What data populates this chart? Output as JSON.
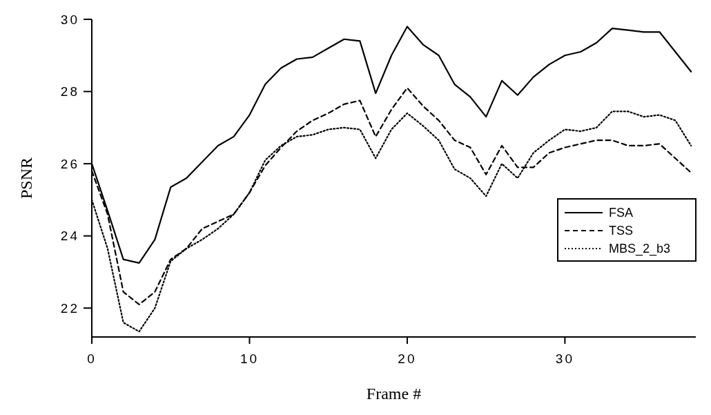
{
  "chart_data": {
    "type": "line",
    "xlabel": "Frame #",
    "ylabel": "PSNR",
    "xlim": [
      0,
      38.3
    ],
    "ylim": [
      21.2,
      30
    ],
    "xticks": [
      0,
      10,
      20,
      30
    ],
    "yticks": [
      22,
      24,
      26,
      28,
      30
    ],
    "grid": false,
    "legend": "right",
    "x": [
      0,
      1,
      2,
      3,
      4,
      5,
      6,
      7,
      8,
      9,
      10,
      11,
      12,
      13,
      14,
      15,
      16,
      17,
      18,
      19,
      20,
      21,
      22,
      23,
      24,
      25,
      26,
      27,
      28,
      29,
      30,
      31,
      32,
      33,
      34,
      35,
      36,
      37,
      38
    ],
    "series": [
      {
        "name": "FSA",
        "color": "#000000",
        "line_style": "solid",
        "values": [
          26.0,
          24.7,
          23.35,
          23.25,
          23.9,
          25.35,
          25.6,
          26.05,
          26.5,
          26.75,
          27.35,
          28.2,
          28.65,
          28.9,
          28.95,
          29.2,
          29.45,
          29.4,
          27.95,
          29.0,
          29.8,
          29.3,
          29.0,
          28.2,
          27.85,
          27.3,
          28.3,
          27.9,
          28.4,
          28.75,
          29.0,
          29.1,
          29.35,
          29.75,
          29.7,
          29.65,
          29.65,
          29.1,
          28.55
        ]
      },
      {
        "name": "TSS",
        "color": "#000000",
        "line_style": "dashed",
        "values": [
          25.8,
          24.6,
          22.45,
          22.1,
          22.45,
          23.35,
          23.65,
          24.2,
          24.4,
          24.6,
          25.2,
          25.95,
          26.45,
          26.9,
          27.2,
          27.4,
          27.65,
          27.75,
          26.75,
          27.5,
          28.1,
          27.6,
          27.2,
          26.65,
          26.45,
          25.7,
          26.5,
          25.9,
          25.9,
          26.3,
          26.45,
          26.55,
          26.65,
          26.65,
          26.5,
          26.5,
          26.55,
          26.15,
          25.75
        ]
      },
      {
        "name": "MBS_2_b3",
        "color": "#000000",
        "line_style": "dotted",
        "values": [
          25.0,
          23.65,
          21.6,
          21.35,
          22.0,
          23.3,
          23.65,
          23.9,
          24.2,
          24.6,
          25.2,
          26.1,
          26.5,
          26.75,
          26.8,
          26.95,
          27.0,
          26.95,
          26.15,
          26.95,
          27.4,
          27.05,
          26.65,
          25.85,
          25.6,
          25.1,
          26.0,
          25.6,
          26.3,
          26.65,
          26.95,
          26.9,
          27.0,
          27.45,
          27.45,
          27.3,
          27.35,
          27.2,
          26.5
        ]
      }
    ]
  }
}
